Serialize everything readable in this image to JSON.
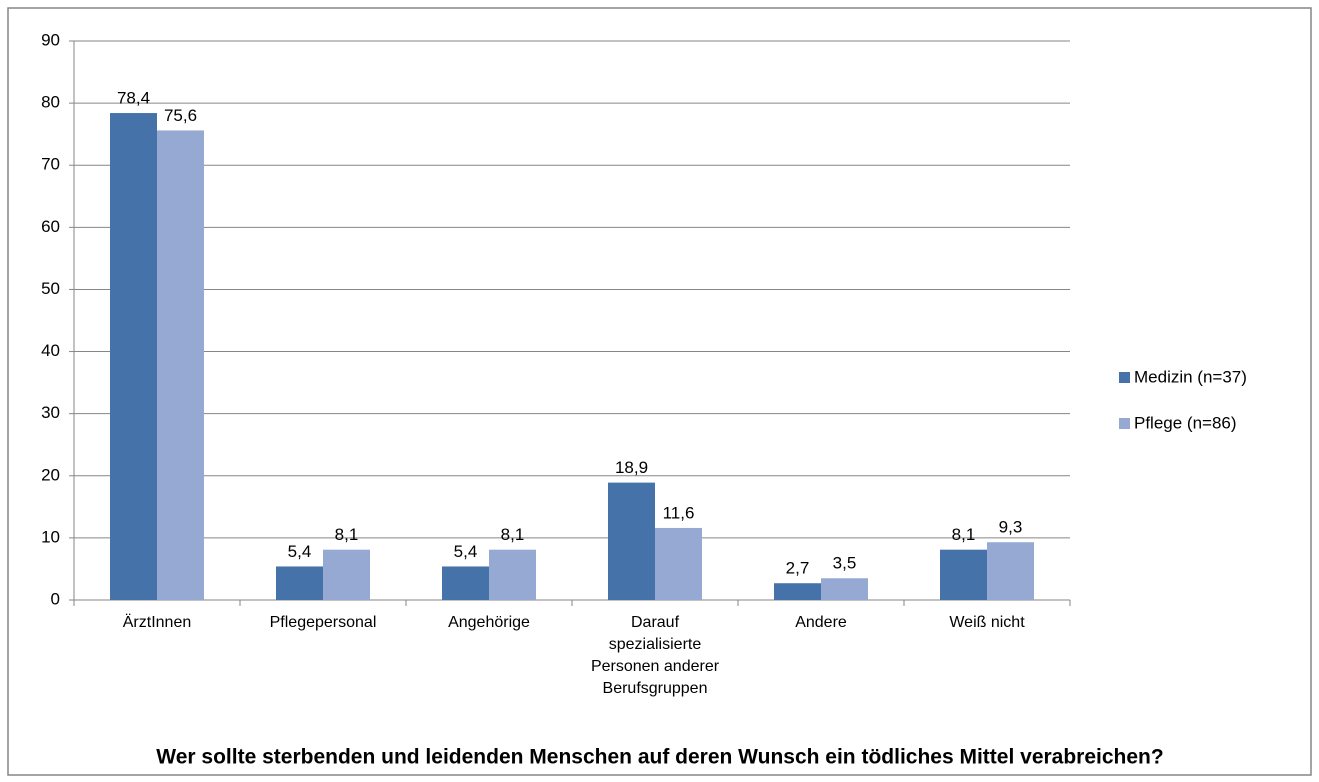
{
  "chart_data": {
    "type": "bar",
    "title": "Wer sollte sterbenden und leidenden Menschen auf deren Wunsch ein tödliches Mittel verabreichen?",
    "categories": [
      "ÄrztInnen",
      "Pflegepersonal",
      "Angehörige",
      "Darauf spezialisierte Personen anderer Berufsgruppen",
      "Andere",
      "Weiß nicht"
    ],
    "series": [
      {
        "name": "Medizin (n=37)",
        "color": "#4672aa",
        "values": [
          78.4,
          5.4,
          5.4,
          18.9,
          2.7,
          8.1
        ],
        "value_labels": [
          "78,4",
          "5,4",
          "5,4",
          "18,9",
          "2,7",
          "8,1"
        ]
      },
      {
        "name": "Pflege (n=86)",
        "color": "#95a9d3",
        "values": [
          75.6,
          8.1,
          8.1,
          11.6,
          3.5,
          9.3
        ],
        "value_labels": [
          "75,6",
          "8,1",
          "8,1",
          "11,6",
          "3,5",
          "9,3"
        ]
      }
    ],
    "ylim": [
      0,
      90
    ],
    "yticks": [
      0,
      10,
      20,
      30,
      40,
      50,
      60,
      70,
      80,
      90
    ],
    "grid": true,
    "legend": "right"
  }
}
